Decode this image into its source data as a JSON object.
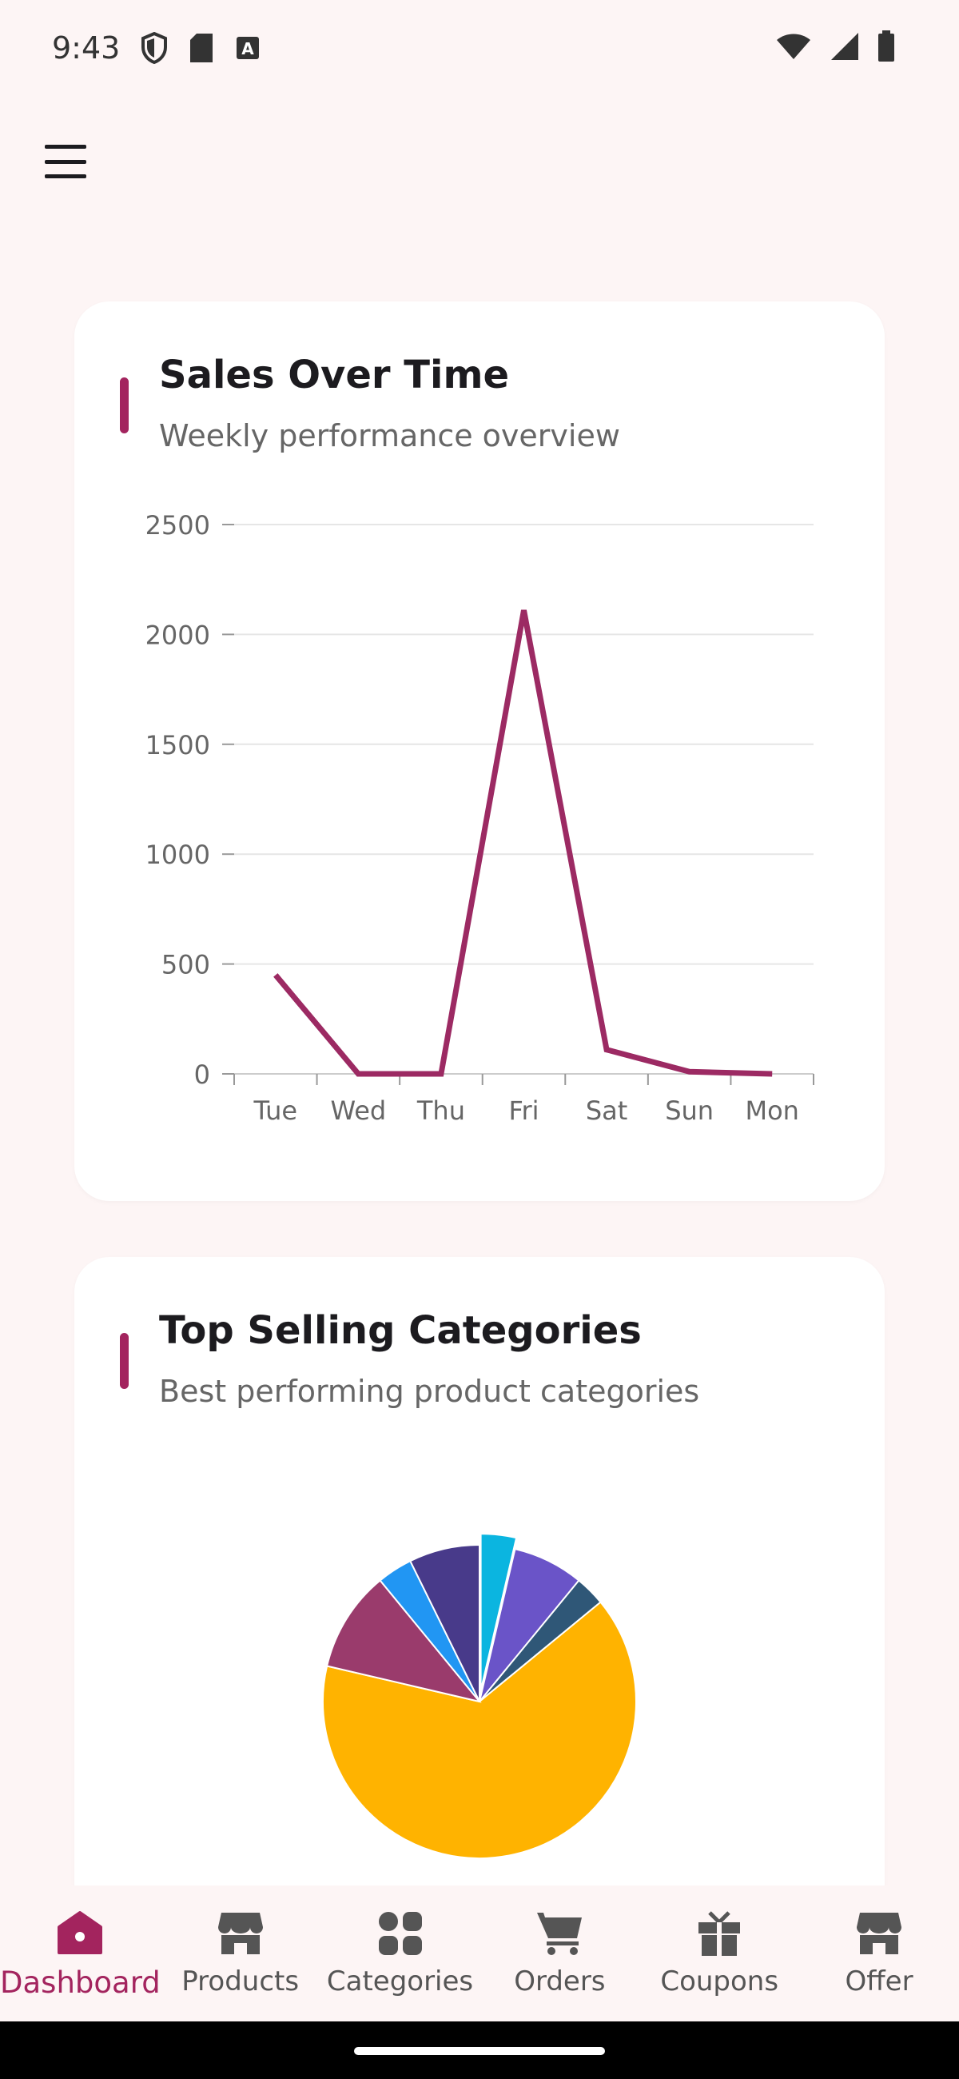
{
  "status_bar": {
    "time": "9:43"
  },
  "colors": {
    "accent": "#a3245e",
    "background": "#fdf5f5",
    "card": "#ffffff",
    "line": "#9c2a63"
  },
  "sales_card": {
    "title": "Sales Over Time",
    "subtitle": "Weekly performance overview"
  },
  "categories_card": {
    "title": "Top Selling Categories",
    "subtitle": "Best performing product categories"
  },
  "chart_data": [
    {
      "type": "line",
      "x": [
        "Tue",
        "Wed",
        "Thu",
        "Fri",
        "Sat",
        "Sun",
        "Mon"
      ],
      "series": [
        {
          "values": [
            450,
            0,
            0,
            2110,
            110,
            10,
            0
          ],
          "color": "#9c2a63"
        }
      ],
      "yticks": [
        0,
        500,
        1000,
        1500,
        2000,
        2500
      ],
      "ylim": [
        0,
        2500
      ],
      "grid": true
    },
    {
      "type": "pie",
      "slices": [
        {
          "value": 3.5,
          "color": "#0bb5e0",
          "exploded": true
        },
        {
          "value": 7,
          "color": "#6a54c8"
        },
        {
          "value": 3,
          "color": "#2f5777"
        },
        {
          "value": 62,
          "color": "#ffb300"
        },
        {
          "value": 10,
          "color": "#9a3b6c"
        },
        {
          "value": 3.5,
          "color": "#2196f3"
        },
        {
          "value": 7,
          "color": "#483a8a"
        }
      ]
    }
  ],
  "nav": {
    "items": [
      {
        "label": "Dashboard",
        "icon": "home-icon",
        "active": true
      },
      {
        "label": "Products",
        "icon": "store-icon",
        "active": false
      },
      {
        "label": "Categories",
        "icon": "grid-icon",
        "active": false
      },
      {
        "label": "Orders",
        "icon": "cart-icon",
        "active": false
      },
      {
        "label": "Coupons",
        "icon": "gift-icon",
        "active": false
      },
      {
        "label": "Offer",
        "icon": "store-icon",
        "active": false
      }
    ]
  }
}
